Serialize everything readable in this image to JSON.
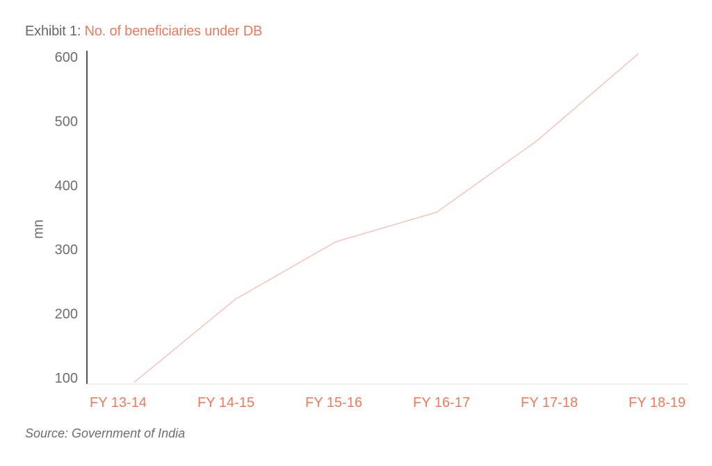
{
  "title": {
    "prefix": "Exhibit 1:",
    "main": "No. of beneficiaries under DB"
  },
  "source": "Source: Government of India",
  "colors": {
    "accent": "#ee7a5c",
    "line": "#f6c4b8",
    "axis": "#555555",
    "text": "#6d6d6d"
  },
  "chart_data": {
    "type": "line",
    "title": "No. of beneficiaries under DB",
    "xlabel": "",
    "ylabel": "mn",
    "categories": [
      "FY 13-14",
      "FY 14-15",
      "FY 15-16",
      "FY 16-17",
      "FY 17-18",
      "FY 18-19"
    ],
    "series": [
      {
        "values": [
          93,
          222,
          312,
          358,
          470,
          605
        ]
      }
    ],
    "yticks": [
      100,
      200,
      300,
      400,
      500,
      600
    ],
    "ytick_labels": [
      "100",
      "200",
      "300",
      "400",
      "500",
      "600"
    ],
    "ylim": [
      88,
      608
    ],
    "grid": false,
    "legend": "none"
  }
}
